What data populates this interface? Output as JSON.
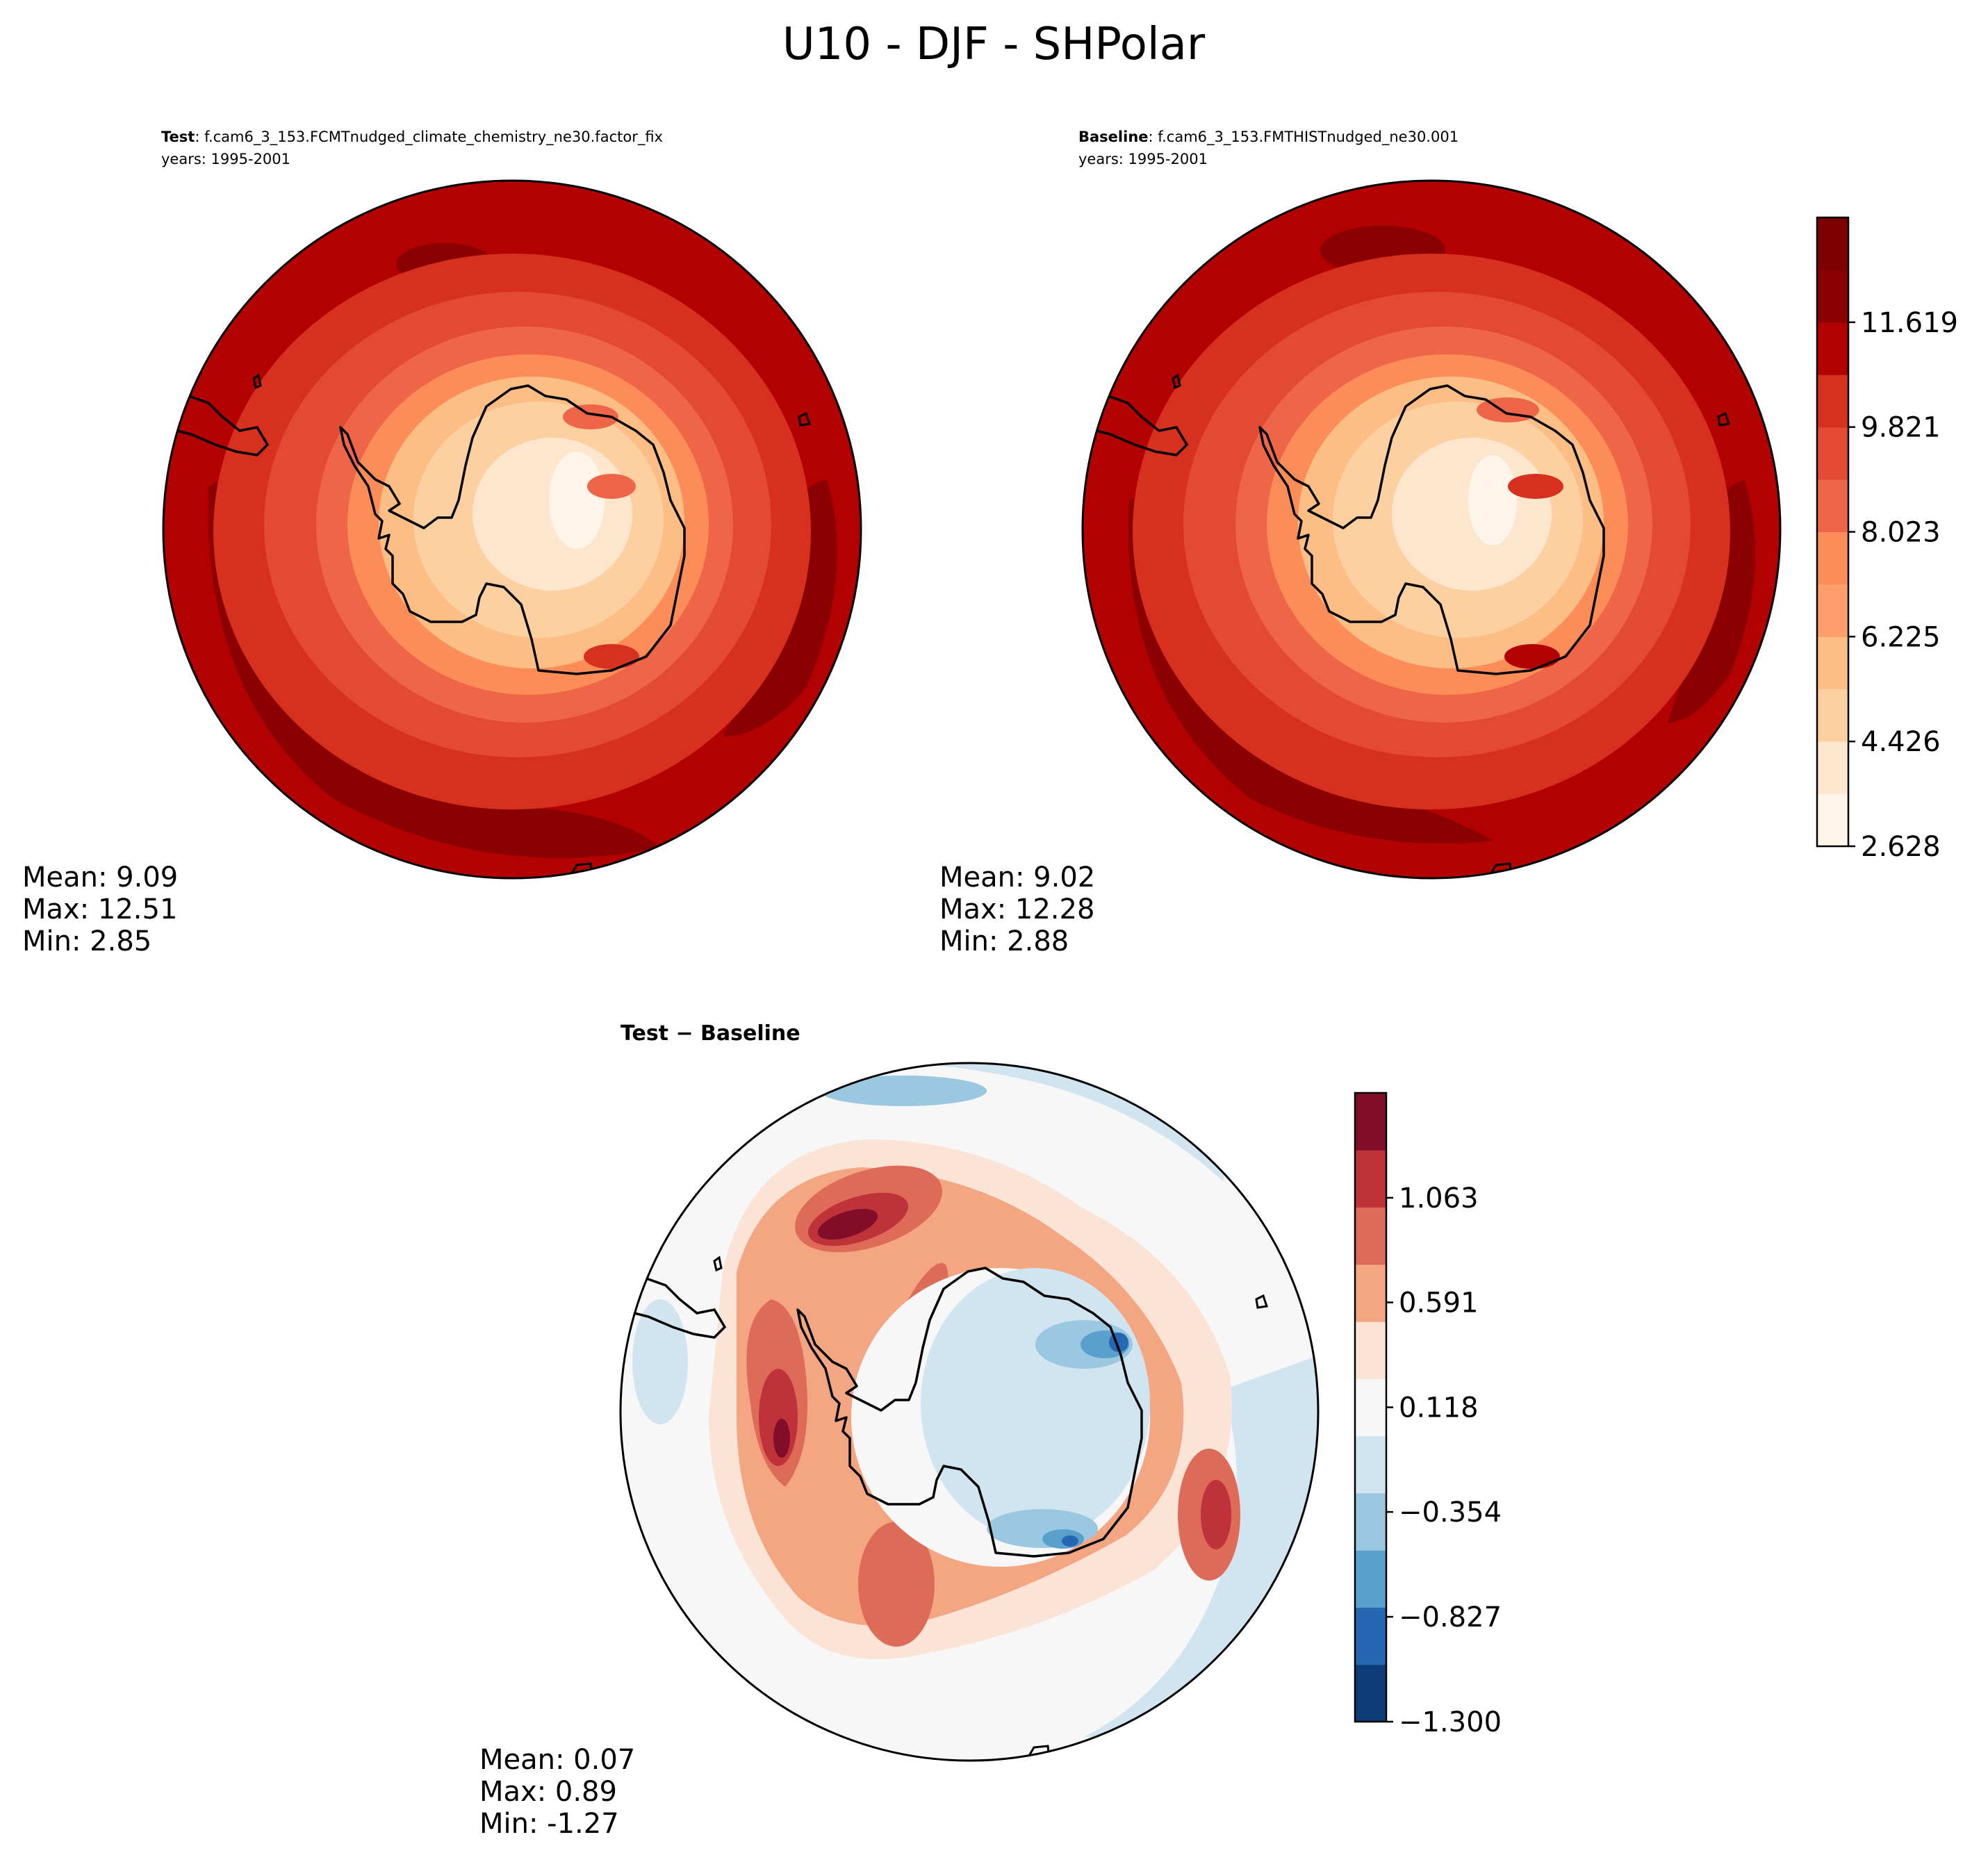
{
  "chart_data": {
    "type": "heatmap",
    "title": "U10 - DJF - SHPolar",
    "panels": [
      {
        "id": "test",
        "label_bold": "Test",
        "label_text": ": f.cam6_3_153.FCMTnudged_climate_chemistry_ne30.factor_fix",
        "years": "years: 1995-2001",
        "stats": {
          "mean": "Mean:  9.09",
          "max": "Max: 12.51",
          "min": "Min:  2.85"
        },
        "field": "u10_test"
      },
      {
        "id": "baseline",
        "label_bold": "Baseline",
        "label_text": ": f.cam6_3_153.FMTHISTnudged_ne30.001",
        "years": "years: 1995-2001",
        "stats": {
          "mean": "Mean:  9.02",
          "max": "Max: 12.28",
          "min": "Min:  2.88"
        },
        "field": "u10_baseline"
      },
      {
        "id": "diff",
        "label_bold": "Test − Baseline",
        "label_text": "",
        "years": "",
        "stats": {
          "mean": "Mean:  0.07",
          "max": "Max:  0.89",
          "min": "Min: -1.27"
        },
        "field": "u10_difference"
      }
    ],
    "colorbars": [
      {
        "id": "main",
        "ticks": [
          "2.628",
          "4.426",
          "6.225",
          "8.023",
          "9.821",
          "11.619"
        ],
        "tick_values": [
          2.628,
          4.426,
          6.225,
          8.023,
          9.821,
          11.619
        ],
        "range": [
          2.628,
          13.417
        ],
        "colors": [
          "#fff5eb",
          "#fee6ce",
          "#fdd0a2",
          "#fdbe85",
          "#fd9e6b",
          "#fc8d59",
          "#ef6548",
          "#e34a33",
          "#d7301f",
          "#b30000",
          "#8b0000",
          "#7f0000"
        ]
      },
      {
        "id": "diff",
        "ticks": [
          "−1.300",
          "−0.827",
          "−0.354",
          "0.118",
          "0.591",
          "1.063"
        ],
        "tick_values": [
          -1.3,
          -0.827,
          -0.354,
          0.118,
          0.591,
          1.063
        ],
        "range": [
          -1.3,
          1.536
        ],
        "colors": [
          "#0b3c78",
          "#2468b4",
          "#5aa0cd",
          "#9ac8e0",
          "#d1e5f0",
          "#f7f7f7",
          "#fbe3d6",
          "#f4a582",
          "#dd6b58",
          "#c0323a",
          "#820d28"
        ]
      }
    ]
  }
}
